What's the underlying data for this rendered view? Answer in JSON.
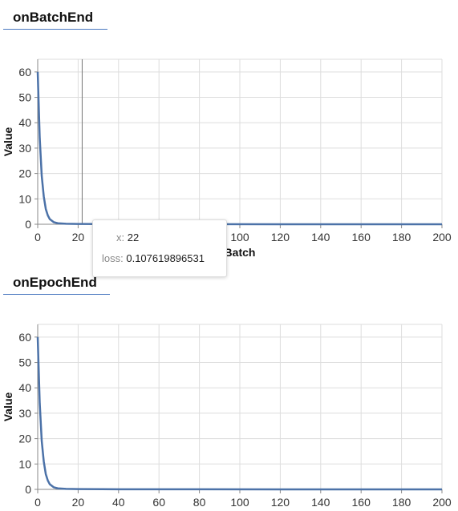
{
  "sections": [
    {
      "title": "onBatchEnd"
    },
    {
      "title": "onEpochEnd"
    }
  ],
  "colors": {
    "line": "#4c72a8",
    "grid": "#dddddd",
    "axis": "#888888"
  },
  "chart_data": [
    {
      "type": "line",
      "title": "onBatchEnd",
      "xlabel": "Batch",
      "ylabel": "Value",
      "xlim": [
        0,
        200
      ],
      "ylim": [
        0,
        65
      ],
      "xticks": [
        0,
        20,
        40,
        60,
        80,
        100,
        120,
        140,
        160,
        180,
        200
      ],
      "yticks": [
        0,
        10,
        20,
        30,
        40,
        50,
        60
      ],
      "grid": true,
      "series": [
        {
          "name": "loss",
          "x": [
            0,
            1,
            2,
            3,
            4,
            5,
            6,
            8,
            10,
            14,
            20,
            22,
            40,
            80,
            120,
            160,
            200
          ],
          "values": [
            60,
            34,
            19,
            11,
            6,
            3.5,
            2,
            0.8,
            0.4,
            0.2,
            0.12,
            0.1,
            0.05,
            0.03,
            0.02,
            0.02,
            0.02
          ]
        }
      ],
      "hover": {
        "x": 22
      },
      "tooltip": {
        "x_key": "x:",
        "x_value": "22",
        "loss_key": "loss:",
        "loss_value": "0.107619896531"
      }
    },
    {
      "type": "line",
      "title": "onEpochEnd",
      "xlabel": "",
      "ylabel": "Value",
      "xlim": [
        0,
        200
      ],
      "ylim": [
        0,
        65
      ],
      "xticks": [
        0,
        20,
        40,
        60,
        80,
        100,
        120,
        140,
        160,
        180,
        200
      ],
      "yticks": [
        0,
        10,
        20,
        30,
        40,
        50,
        60
      ],
      "grid": true,
      "series": [
        {
          "x": [
            0,
            1,
            2,
            3,
            4,
            5,
            6,
            8,
            10,
            14,
            20,
            40,
            80,
            120,
            160,
            200
          ],
          "values": [
            60,
            34,
            19,
            11,
            6,
            3.5,
            2,
            0.8,
            0.4,
            0.2,
            0.12,
            0.05,
            0.03,
            0.02,
            0.02,
            0.02
          ]
        }
      ]
    }
  ]
}
